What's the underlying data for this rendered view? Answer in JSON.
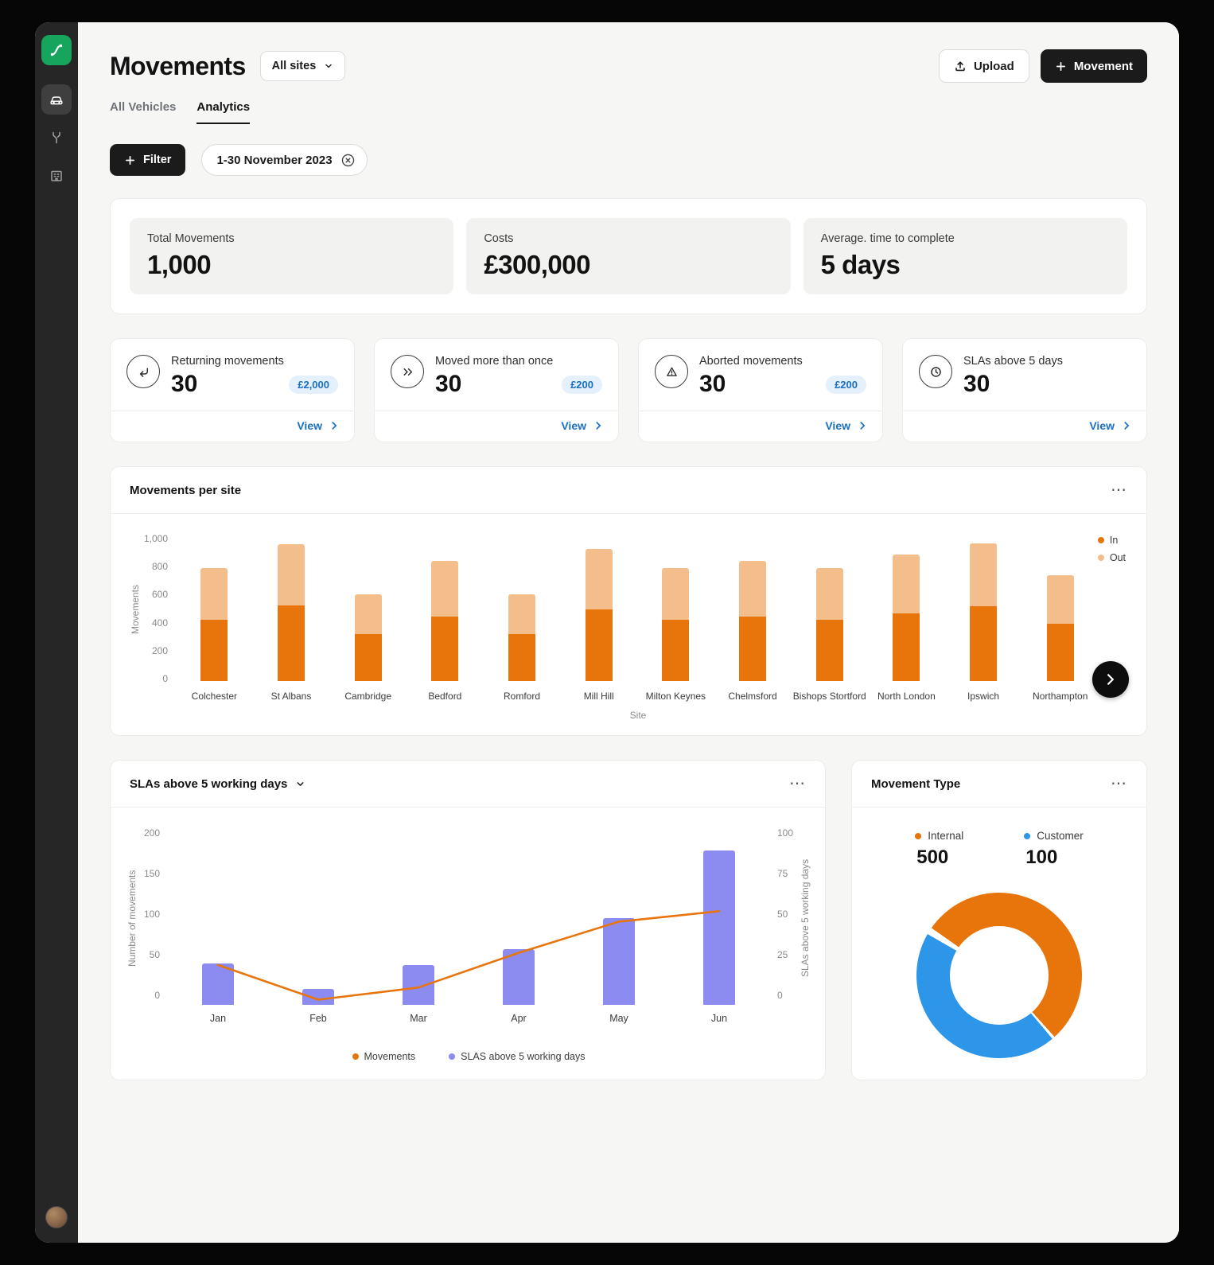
{
  "colors": {
    "orange": "#E8750C",
    "orange_light": "#F4BE8C",
    "purple": "#8B8BF0",
    "blue": "#2E96E8",
    "link": "#1A6FC4",
    "badge_bg": "#E4F0FB",
    "green": "#17A45C"
  },
  "header": {
    "title": "Movements",
    "site_selector": "All sites",
    "upload_label": "Upload",
    "movement_label": "Movement"
  },
  "tabs": [
    {
      "label": "All Vehicles"
    },
    {
      "label": "Analytics"
    }
  ],
  "filters": {
    "filter_label": "Filter",
    "date_range": "1-30 November 2023"
  },
  "stats": [
    {
      "label": "Total Movements",
      "value": "1,000"
    },
    {
      "label": "Costs",
      "value": "£300,000"
    },
    {
      "label": "Average. time to complete",
      "value": "5 days"
    }
  ],
  "metric_cards": [
    {
      "title": "Returning movements",
      "value": "30",
      "badge": "£2,000",
      "view_label": "View"
    },
    {
      "title": "Moved more than once",
      "value": "30",
      "badge": "£200",
      "view_label": "View"
    },
    {
      "title": "Aborted movements",
      "value": "30",
      "badge": "£200",
      "view_label": "View"
    },
    {
      "title": "SLAs above 5 days",
      "value": "30",
      "view_label": "View"
    }
  ],
  "chart_data": [
    {
      "type": "bar",
      "stacked": true,
      "title": "Movements per site",
      "categories": [
        "Colchester",
        "St Albans",
        "Cambridge",
        "Bedford",
        "Romford",
        "Mill Hill",
        "Milton Keynes",
        "Chelmsford",
        "Bishops Stortford",
        "North London",
        "Ipswich",
        "Northampton"
      ],
      "series": [
        {
          "name": "In",
          "values": [
            430,
            530,
            330,
            450,
            330,
            500,
            430,
            450,
            430,
            470,
            520,
            400
          ]
        },
        {
          "name": "Out",
          "values": [
            360,
            430,
            280,
            390,
            280,
            420,
            360,
            390,
            360,
            410,
            440,
            340
          ]
        }
      ],
      "ylabel": "Movements",
      "xlabel": "Site",
      "ylim": [
        0,
        1000
      ],
      "yticks": [
        "0",
        "200",
        "400",
        "600",
        "800",
        "1,000"
      ],
      "legend_position": "top-right"
    },
    {
      "type": "combo",
      "title": "SLAs above 5 working days",
      "categories": [
        "Jan",
        "Feb",
        "Mar",
        "Apr",
        "May",
        "Jun"
      ],
      "bar_series": {
        "name": "SLAS above 5 working days",
        "axis": "right",
        "values": [
          24,
          9,
          23,
          32,
          50,
          89
        ]
      },
      "line_series": {
        "name": "Movements",
        "axis": "left",
        "values": [
          46,
          6,
          20,
          60,
          96,
          108
        ]
      },
      "left_axis": {
        "label": "Number of movements",
        "ticks": [
          "0",
          "50",
          "100",
          "150",
          "200"
        ],
        "max": 200
      },
      "right_axis": {
        "label": "SLAs above 5 working days",
        "ticks": [
          "0",
          "25",
          "50",
          "75",
          "100"
        ],
        "max": 100
      },
      "legend": [
        "Movements",
        "SLAS above 5 working days"
      ]
    },
    {
      "type": "donut",
      "title": "Movement Type",
      "segments": [
        {
          "label": "Internal",
          "value": "500",
          "color": "#E8750C"
        },
        {
          "label": "Customer",
          "value": "100",
          "color": "#2E96E8"
        }
      ],
      "visual": {
        "from_deg": 305,
        "sweeps": [
          {
            "color": "#E8750C",
            "deg": 193
          },
          {
            "color": "#ffffff",
            "deg": 2
          },
          {
            "color": "#2E96E8",
            "deg": 160
          },
          {
            "color": "#ffffff",
            "deg": 5
          }
        ]
      }
    }
  ]
}
